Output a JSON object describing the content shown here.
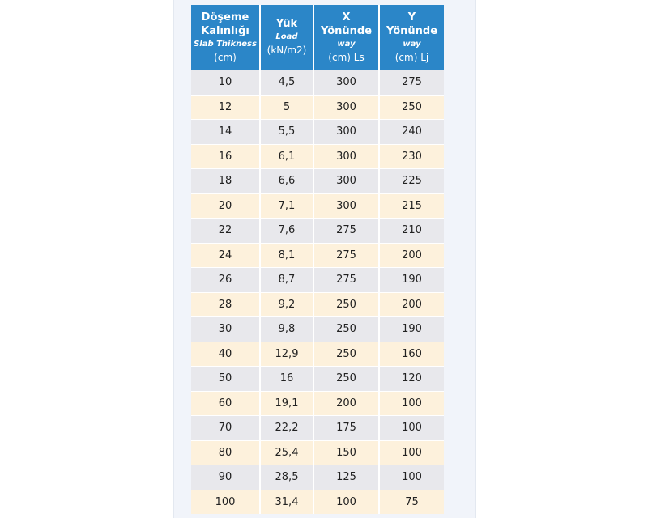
{
  "header": {
    "col1": {
      "tr": "Döşeme Kalınlığı",
      "en": "Slab Thikness",
      "unit": "(cm)"
    },
    "col2": {
      "tr": "Yük",
      "en": "Load",
      "unit": "(kN/m2)"
    },
    "col3": {
      "tr": "X Yönünde",
      "en": "way",
      "unit": "(cm) Ls"
    },
    "col4": {
      "tr": "Y Yönünde",
      "en": "way",
      "unit": "(cm) Lj"
    }
  },
  "rows": [
    [
      "10",
      "4,5",
      "300",
      "275"
    ],
    [
      "12",
      "5",
      "300",
      "250"
    ],
    [
      "14",
      "5,5",
      "300",
      "240"
    ],
    [
      "16",
      "6,1",
      "300",
      "230"
    ],
    [
      "18",
      "6,6",
      "300",
      "225"
    ],
    [
      "20",
      "7,1",
      "300",
      "215"
    ],
    [
      "22",
      "7,6",
      "275",
      "210"
    ],
    [
      "24",
      "8,1",
      "275",
      "200"
    ],
    [
      "26",
      "8,7",
      "275",
      "190"
    ],
    [
      "28",
      "9,2",
      "250",
      "200"
    ],
    [
      "30",
      "9,8",
      "250",
      "190"
    ],
    [
      "40",
      "12,9",
      "250",
      "160"
    ],
    [
      "50",
      "16",
      "250",
      "120"
    ],
    [
      "60",
      "19,1",
      "200",
      "100"
    ],
    [
      "70",
      "22,2",
      "175",
      "100"
    ],
    [
      "80",
      "25,4",
      "150",
      "100"
    ],
    [
      "90",
      "28,5",
      "125",
      "100"
    ],
    [
      "100",
      "31,4",
      "100",
      "75"
    ]
  ],
  "colors": {
    "header": "#2b86c8",
    "row_odd": "#e8e8ec",
    "row_even": "#fdf1dc"
  }
}
